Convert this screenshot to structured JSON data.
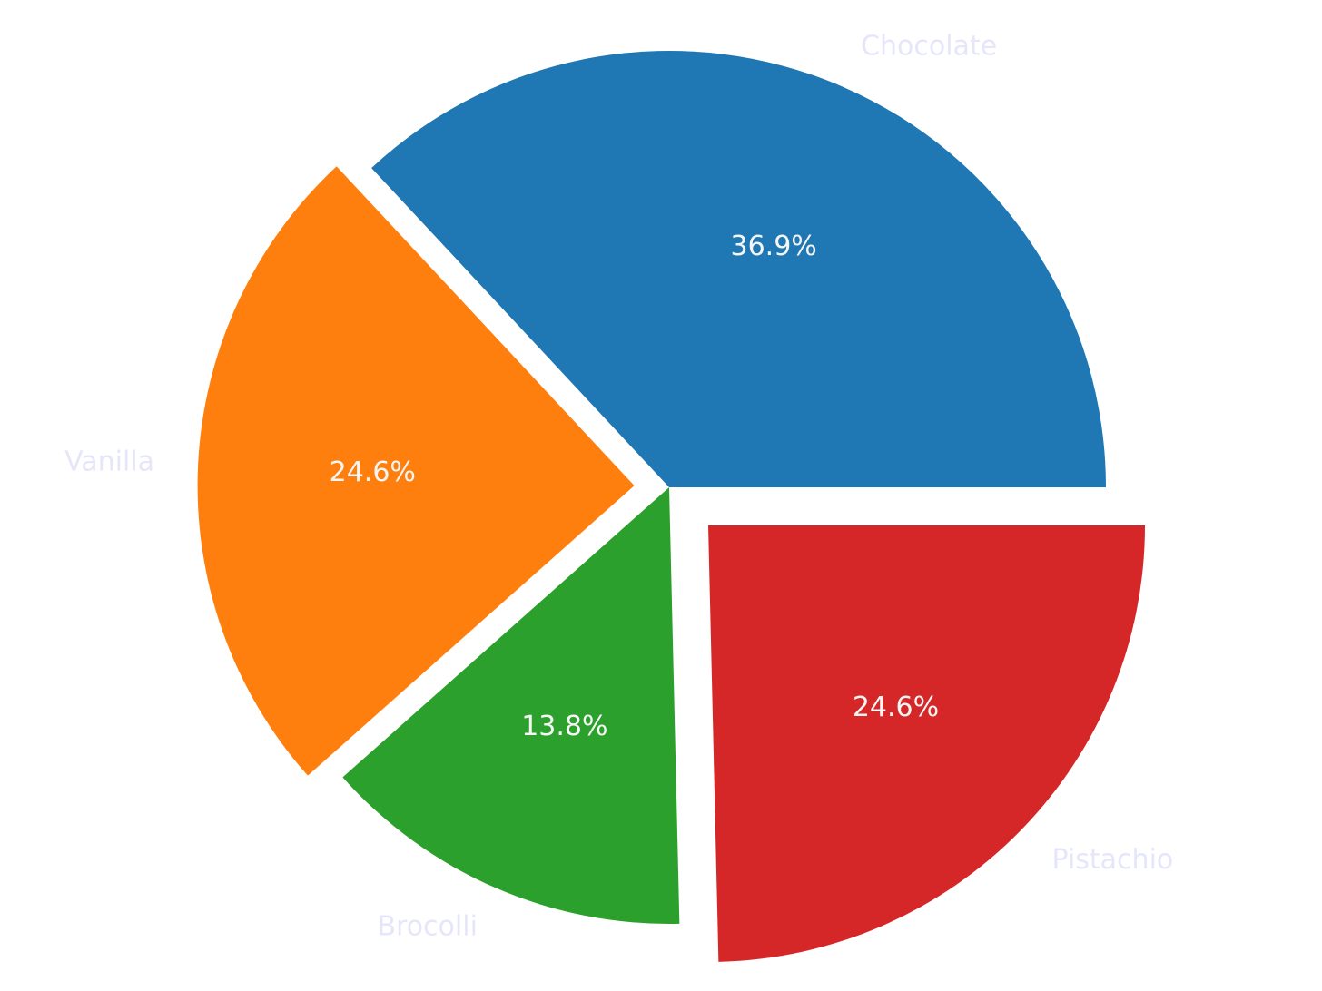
{
  "chart_data": {
    "type": "pie",
    "categories": [
      "Chocolate",
      "Vanilla",
      "Brocolli",
      "Pistachio"
    ],
    "values": [
      36.9,
      24.6,
      13.8,
      24.6
    ],
    "value_labels": [
      "36.9%",
      "24.6%",
      "13.8%",
      "24.6%"
    ],
    "colors": [
      "#1f77b4",
      "#ff7f0e",
      "#2ca02c",
      "#d62728"
    ],
    "explode": [
      0,
      0.08,
      0,
      0.125
    ],
    "start_angle": 0,
    "label_color": "#e6e6fa",
    "value_label_color": "#f5f5f5"
  }
}
